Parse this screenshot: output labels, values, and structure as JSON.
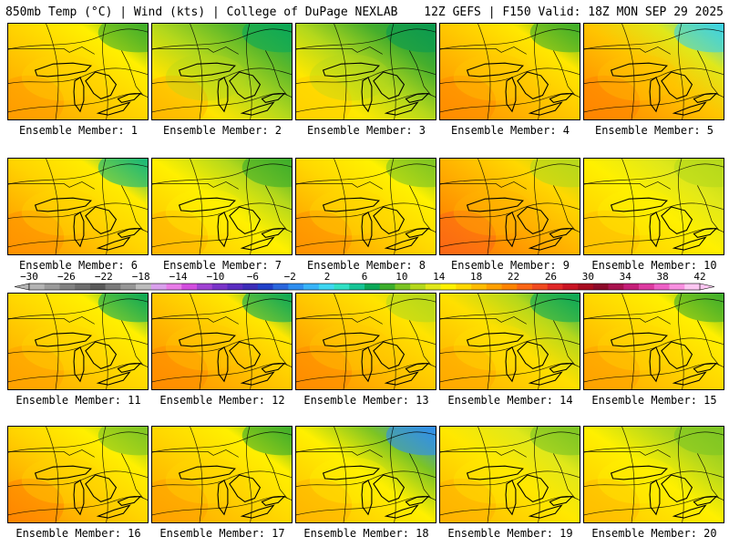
{
  "header": {
    "left": "850mb Temp (°C) | Wind (kts) | College of DuPage NEXLAB",
    "right": "12Z GEFS | F150 Valid: 18Z MON SEP 29 2025"
  },
  "colorbar": {
    "tick_labels": [
      "-30",
      "-26",
      "-22",
      "-18",
      "-14",
      "-10",
      "-6",
      "-2",
      "2",
      "6",
      "10",
      "14",
      "18",
      "22",
      "26",
      "30",
      "34",
      "38",
      "42"
    ],
    "colors": [
      "#b4b4b4",
      "#9a9a9a",
      "#828282",
      "#6e6e6e",
      "#5a5a5a",
      "#7a7a7a",
      "#969696",
      "#bcbcbc",
      "#d9a0ec",
      "#e87ce8",
      "#d24ede",
      "#a042d2",
      "#7a34c8",
      "#5a2cc0",
      "#3c2cb8",
      "#2040c8",
      "#2a66dc",
      "#2e8ef0",
      "#38b4f8",
      "#3ed6f2",
      "#30e0c4",
      "#16c496",
      "#0aa858",
      "#3cae2c",
      "#7cc424",
      "#b4d81c",
      "#e0e81a",
      "#fff200",
      "#ffd800",
      "#ffbc00",
      "#ffa000",
      "#ff8400",
      "#fb6616",
      "#f04a20",
      "#e02828",
      "#c81424",
      "#a80c20",
      "#8c0a2a",
      "#a8124e",
      "#c41e78",
      "#dc3aa0",
      "#ee60c6",
      "#f890e0",
      "#fcc6f2"
    ]
  },
  "panels": [
    {
      "label": "Ensemble Member: 1",
      "colors": [
        "#ff9a00",
        "#ffb800",
        "#ffd400",
        "#fff000",
        "#3cae2c"
      ]
    },
    {
      "label": "Ensemble Member: 2",
      "colors": [
        "#ffb400",
        "#ffe400",
        "#b4d81c",
        "#5cb82a",
        "#0aa858"
      ]
    },
    {
      "label": "Ensemble Member: 3",
      "colors": [
        "#ffd000",
        "#ffe800",
        "#b4d81c",
        "#46ae2c",
        "#0a9a50"
      ]
    },
    {
      "label": "Ensemble Member: 4",
      "colors": [
        "#ff8a00",
        "#ffa800",
        "#ffc800",
        "#ffe800",
        "#3cae2c"
      ]
    },
    {
      "label": "Ensemble Member: 5",
      "colors": [
        "#ff8400",
        "#ffa000",
        "#ffc400",
        "#e0e81a",
        "#38d2e8"
      ]
    },
    {
      "label": "Ensemble Member: 6",
      "colors": [
        "#ff9000",
        "#ffb000",
        "#ffd400",
        "#ffec00",
        "#16b87a"
      ]
    },
    {
      "label": "Ensemble Member: 7",
      "colors": [
        "#ffb400",
        "#ffd400",
        "#fff000",
        "#b4d81c",
        "#3cae2c"
      ]
    },
    {
      "label": "Ensemble Member: 8",
      "colors": [
        "#ff9000",
        "#ffb400",
        "#ffd800",
        "#fff200",
        "#7cc424"
      ]
    },
    {
      "label": "Ensemble Member: 9",
      "colors": [
        "#fb6616",
        "#ff9000",
        "#ffb400",
        "#ffd800",
        "#b4d81c"
      ]
    },
    {
      "label": "Ensemble Member: 10",
      "colors": [
        "#ffc000",
        "#ffd800",
        "#fff000",
        "#e0e81a",
        "#b4d81c"
      ]
    },
    {
      "label": "Ensemble Member: 11",
      "colors": [
        "#ffa000",
        "#ffbc00",
        "#ffd800",
        "#fff000",
        "#0aa858"
      ]
    },
    {
      "label": "Ensemble Member: 12",
      "colors": [
        "#ff8a00",
        "#ffa800",
        "#ffc800",
        "#ffe800",
        "#0aa858"
      ]
    },
    {
      "label": "Ensemble Member: 13",
      "colors": [
        "#ff8a00",
        "#ffa800",
        "#ffc800",
        "#ffe400",
        "#b4d81c"
      ]
    },
    {
      "label": "Ensemble Member: 14",
      "colors": [
        "#ffa800",
        "#ffc400",
        "#ffe000",
        "#b4d81c",
        "#0aa858"
      ]
    },
    {
      "label": "Ensemble Member: 15",
      "colors": [
        "#ffa000",
        "#ffbc00",
        "#ffd800",
        "#fff000",
        "#3cae2c"
      ]
    },
    {
      "label": "Ensemble Member: 16",
      "colors": [
        "#ff8400",
        "#ffb000",
        "#ffd400",
        "#fff000",
        "#7cc424"
      ]
    },
    {
      "label": "Ensemble Member: 17",
      "colors": [
        "#ffa000",
        "#ffbc00",
        "#ffd800",
        "#fff000",
        "#3cae2c"
      ]
    },
    {
      "label": "Ensemble Member: 18",
      "colors": [
        "#ffb400",
        "#ffd400",
        "#fff000",
        "#7cc424",
        "#2e8ef0"
      ]
    },
    {
      "label": "Ensemble Member: 19",
      "colors": [
        "#ffb000",
        "#ffcc00",
        "#ffe800",
        "#e0e81a",
        "#7cc424"
      ]
    },
    {
      "label": "Ensemble Member: 20",
      "colors": [
        "#ffbc00",
        "#ffd800",
        "#fff000",
        "#b4d81c",
        "#7cc424"
      ]
    }
  ]
}
